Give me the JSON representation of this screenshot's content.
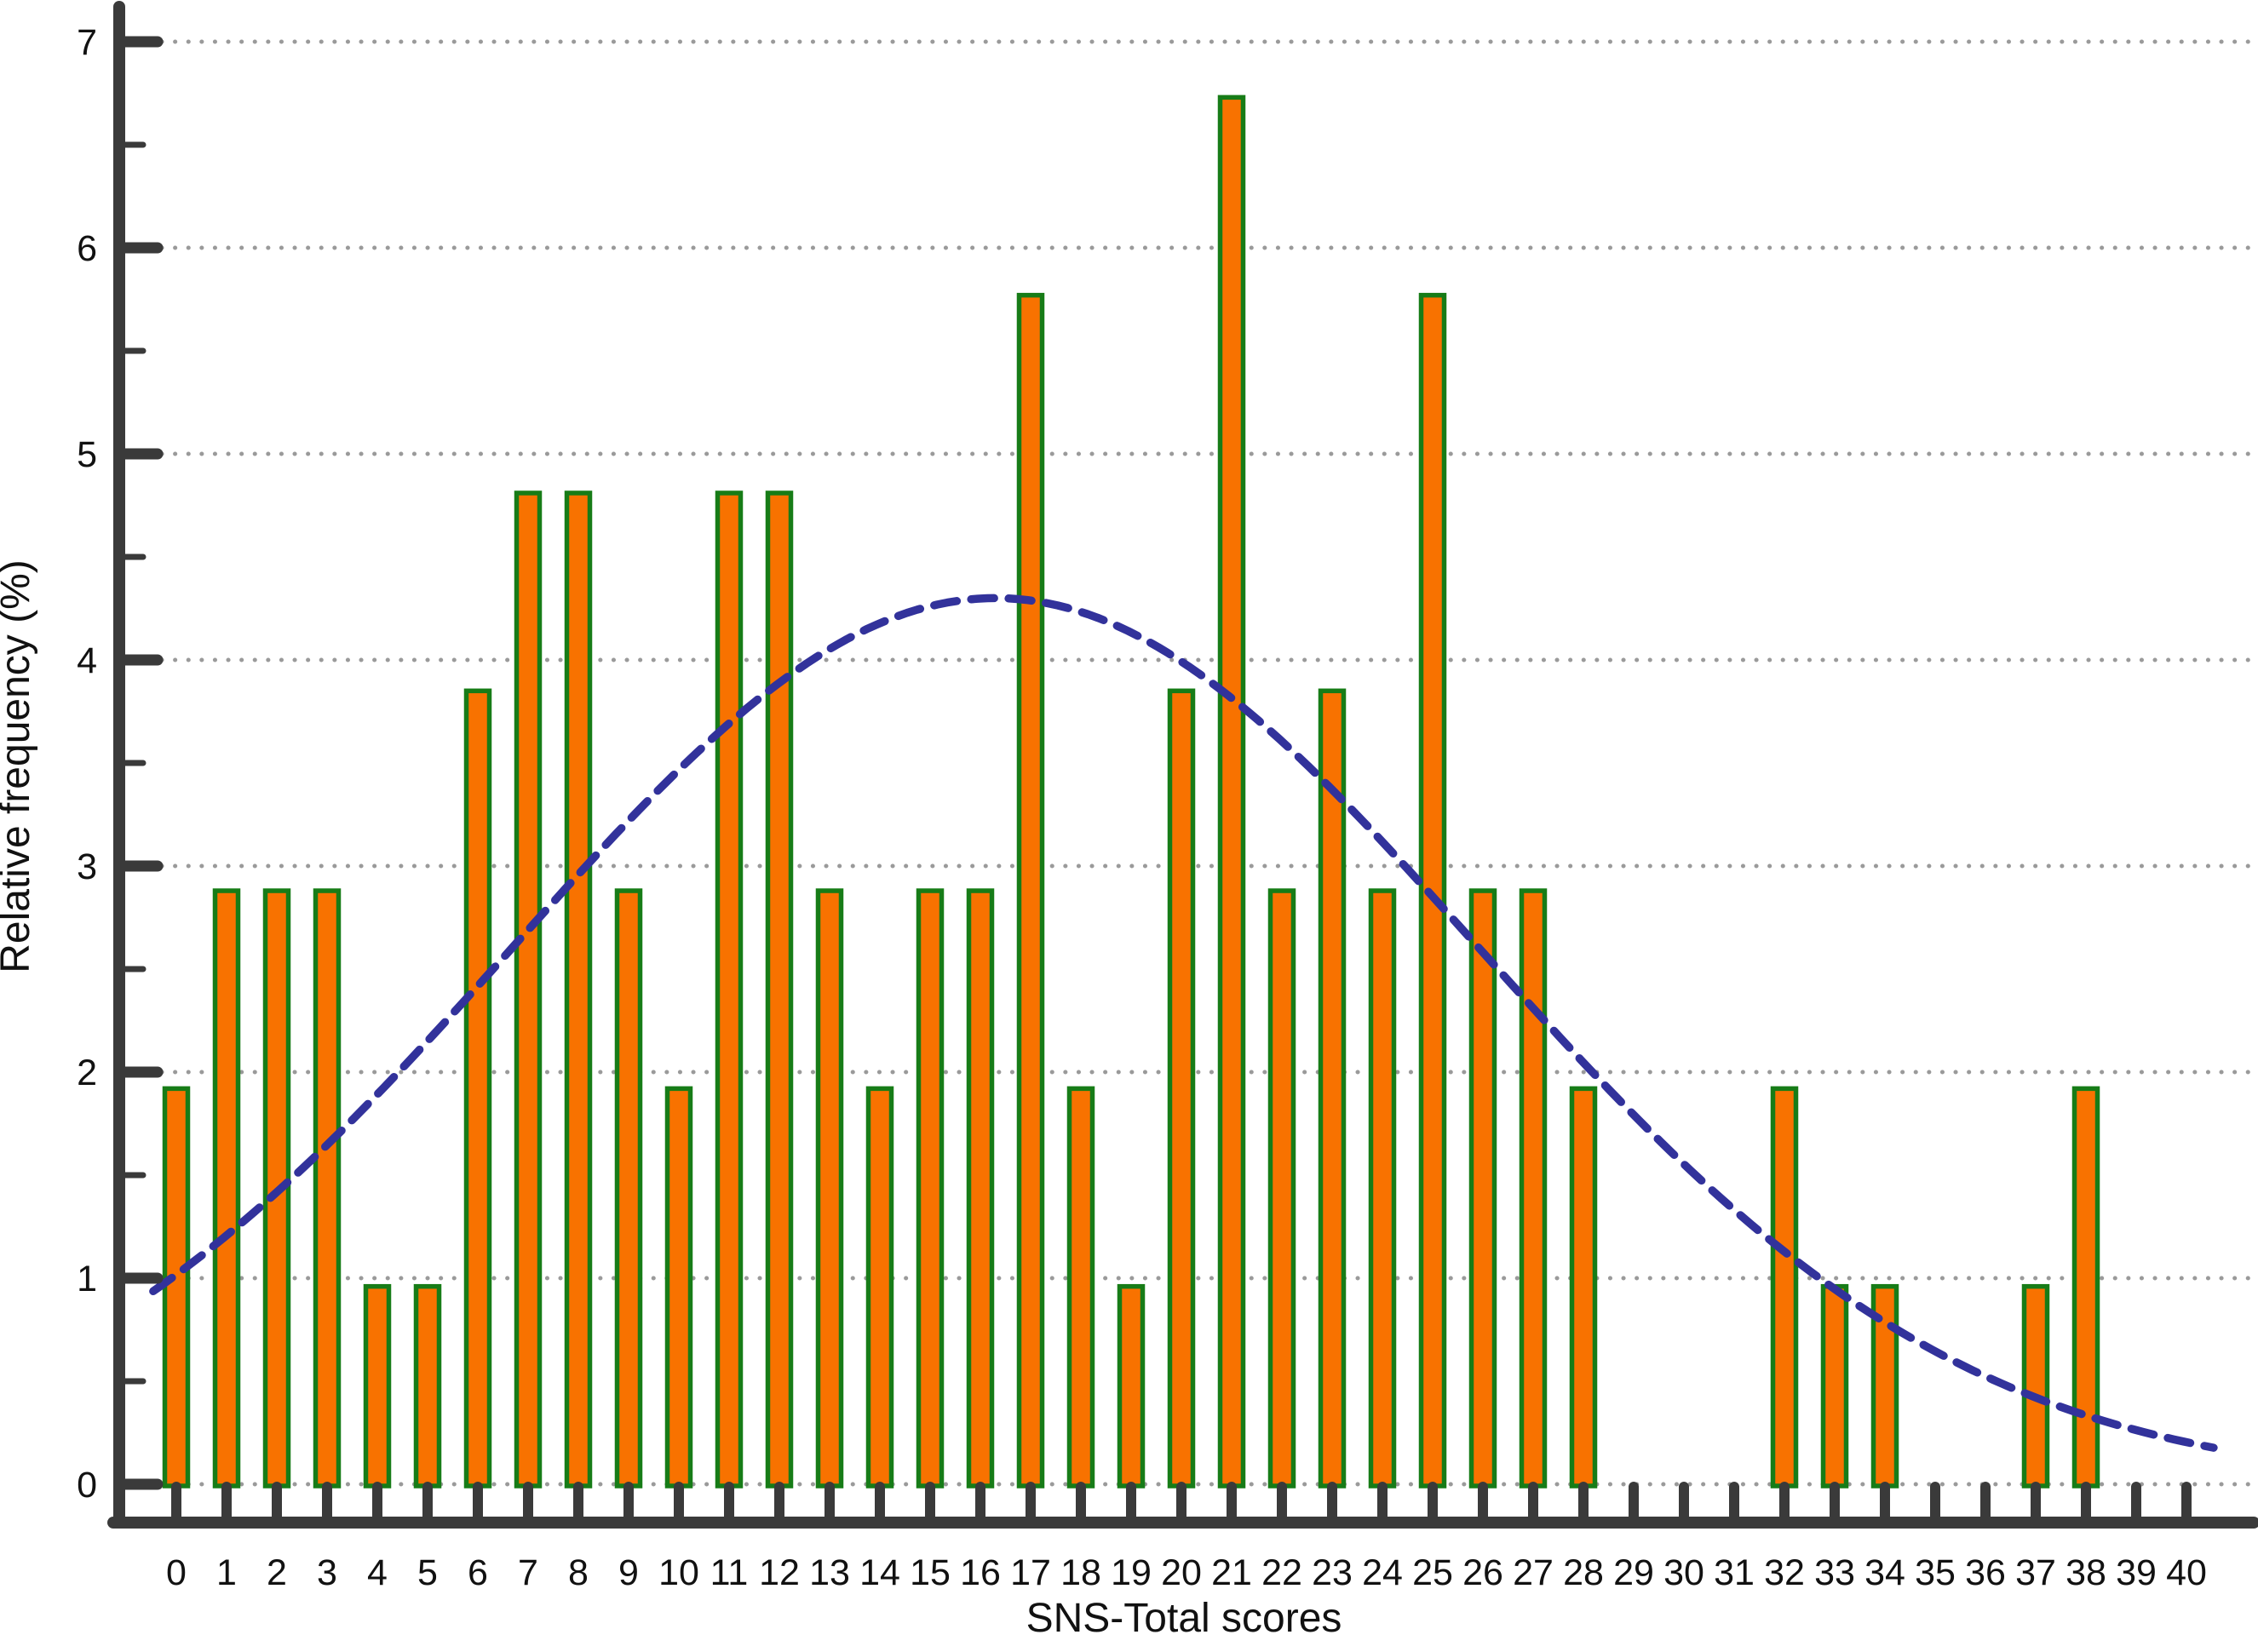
{
  "chart_data": {
    "type": "bar",
    "title": "",
    "xlabel": "SNS-Total scores",
    "ylabel": "Relative frequency (%)",
    "categories": [
      0,
      1,
      2,
      3,
      4,
      5,
      6,
      7,
      8,
      9,
      10,
      11,
      12,
      13,
      14,
      15,
      16,
      17,
      18,
      19,
      20,
      21,
      22,
      23,
      24,
      25,
      26,
      27,
      28,
      29,
      30,
      31,
      32,
      33,
      34,
      35,
      36,
      37,
      38,
      39,
      40
    ],
    "values": [
      1.92,
      2.88,
      2.88,
      2.88,
      0.96,
      0.96,
      3.85,
      4.81,
      4.81,
      2.88,
      1.92,
      4.81,
      4.81,
      2.88,
      1.92,
      2.88,
      2.88,
      5.77,
      1.92,
      0.96,
      3.85,
      6.73,
      2.88,
      3.85,
      2.88,
      5.77,
      2.88,
      2.88,
      1.92,
      0,
      0,
      0,
      1.92,
      0.96,
      0.96,
      0,
      0,
      0.96,
      1.92,
      0,
      0
    ],
    "ylim": [
      0,
      7
    ],
    "y_major_ticks": [
      0,
      1,
      2,
      3,
      4,
      5,
      6,
      7
    ],
    "y_minor_tick_step": 0.5,
    "x_tick_step": 1,
    "grid": {
      "style": "dotted",
      "horizontal_at": [
        0,
        1,
        2,
        3,
        4,
        5,
        6,
        7
      ]
    },
    "legend_position": "none",
    "overlay_curve": {
      "type": "normal-distribution-fit",
      "line_style": "dashed",
      "mean": 16.3,
      "sd": 9.6,
      "peak_value": 4.3,
      "x_range": [
        -0.46,
        40.62
      ]
    },
    "colors": {
      "bar_fill": "#F87200",
      "bar_border": "#177C17",
      "curve": "#32329B",
      "axis": "#3A3A3A",
      "grid_dots": "#9A9A9A",
      "label_text": "#111111",
      "background": "#FFFFFF"
    }
  }
}
